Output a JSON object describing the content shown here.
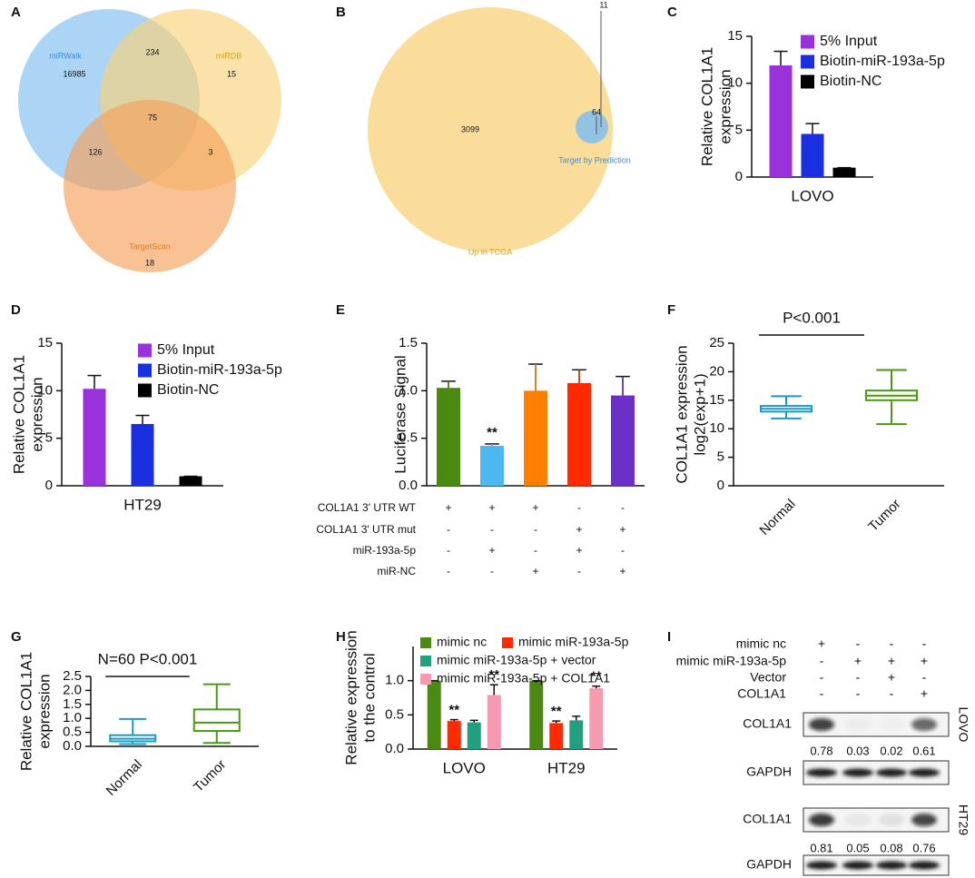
{
  "chart_data": [
    {
      "panel": "A",
      "type": "venn",
      "sets": [
        {
          "name": "miRWalk",
          "color": "#7fbef0"
        },
        {
          "name": "miRDB",
          "color": "#f8d27a"
        },
        {
          "name": "TargetScan",
          "color": "#f5a25a"
        }
      ],
      "values": [
        16985,
        234,
        15,
        75,
        126,
        3,
        18
      ]
    },
    {
      "panel": "B",
      "type": "venn",
      "sets": [
        {
          "name": "Up in TCGA",
          "color": "#f8d27a"
        },
        {
          "name": "Target by Prediction",
          "color": "#7fbef0"
        }
      ],
      "values": [
        3099,
        11,
        64
      ]
    },
    {
      "panel": "C",
      "type": "bar",
      "y_label": [
        "Relative COL1A1",
        "expression"
      ],
      "categories": [
        "LOVO"
      ],
      "series": [
        {
          "name": "5% Input",
          "color": "#9a32dc",
          "values": [
            11.9
          ],
          "errors": [
            1.5
          ]
        },
        {
          "name": "Biotin-miR-193a-5p",
          "color": "#1a2fe0",
          "values": [
            4.6
          ],
          "errors": [
            1.1
          ]
        },
        {
          "name": "Biotin-NC",
          "color": "#000000",
          "values": [
            1.0
          ],
          "errors": [
            0
          ]
        }
      ],
      "ylim": [
        0,
        15
      ],
      "yticks": [
        0,
        5,
        10,
        15
      ]
    },
    {
      "panel": "D",
      "type": "bar",
      "y_label": [
        "Relative COL1A1",
        "expression"
      ],
      "categories": [
        "HT29"
      ],
      "series": [
        {
          "name": "5% Input",
          "color": "#9a32dc",
          "values": [
            10.2
          ],
          "errors": [
            1.4
          ]
        },
        {
          "name": "Biotin-miR-193a-5p",
          "color": "#1a2fe0",
          "values": [
            6.5
          ],
          "errors": [
            0.9
          ]
        },
        {
          "name": "Biotin-NC",
          "color": "#000000",
          "values": [
            1.0
          ],
          "errors": [
            0
          ]
        }
      ],
      "ylim": [
        0,
        15
      ],
      "yticks": [
        0,
        5,
        10,
        15
      ]
    },
    {
      "panel": "E",
      "type": "bar",
      "y_label": [
        "Luciferase Signal"
      ],
      "values": [
        1.03,
        0.42,
        1.0,
        1.08,
        0.95
      ],
      "errors": [
        0.07,
        0.02,
        0.28,
        0.14,
        0.2
      ],
      "colors": [
        "#4a8a10",
        "#4db8f0",
        "#ff8000",
        "#ff2a00",
        "#6a30c8"
      ],
      "value_annotations": [
        null,
        "**",
        null,
        null,
        null
      ],
      "ylim": [
        0,
        1.5
      ],
      "yticks": [
        {
          "value": 0,
          "label": "0.0"
        },
        0.5,
        {
          "value": 1,
          "label": "1.0"
        },
        1.5
      ],
      "conditions": [
        {
          "label": "COL1A1 3' UTR WT",
          "marks": [
            "+",
            "+",
            "+",
            "-",
            "-"
          ]
        },
        {
          "label": "COL1A1 3' UTR mut",
          "marks": [
            "-",
            "-",
            "-",
            "+",
            "+"
          ]
        },
        {
          "label": "miR-193a-5p",
          "marks": [
            "-",
            "+",
            "-",
            "+",
            "-"
          ]
        },
        {
          "label": "miR-NC",
          "marks": [
            "-",
            "-",
            "+",
            "-",
            "+"
          ]
        }
      ]
    },
    {
      "panel": "F",
      "type": "box",
      "y_label": [
        "COL1A1 expression",
        "log2(exp+1)"
      ],
      "annotation": "P<0.001",
      "categories": [
        "Normal",
        "Tumor"
      ],
      "colors": [
        "#1a9ac8",
        "#4a9a10"
      ],
      "boxes": [
        {
          "min": 11.8,
          "q1": 13.0,
          "median": 13.5,
          "q3": 14.0,
          "max": 15.7
        },
        {
          "min": 10.8,
          "q1": 15.0,
          "median": 15.8,
          "q3": 16.7,
          "max": 20.3
        }
      ],
      "ylim": [
        0,
        25
      ],
      "yticks": [
        0,
        5,
        10,
        15,
        20,
        25
      ]
    },
    {
      "panel": "G",
      "type": "box",
      "y_label": [
        "Relative COL1A1",
        "expression"
      ],
      "annotation": "N=60 P<0.001",
      "categories": [
        "Normal",
        "Tumor"
      ],
      "colors": [
        "#1a9ac8",
        "#4a9a10"
      ],
      "boxes": [
        {
          "min": 0.08,
          "q1": 0.18,
          "median": 0.27,
          "q3": 0.4,
          "max": 0.98
        },
        {
          "min": 0.12,
          "q1": 0.55,
          "median": 0.85,
          "q3": 1.32,
          "max": 2.22
        }
      ],
      "ylim": [
        0,
        2.5
      ],
      "yticks": [
        {
          "value": 0,
          "label": "0.0"
        },
        0.5,
        {
          "value": 1,
          "label": "1.0"
        },
        1.5,
        {
          "value": 2,
          "label": "2.0"
        },
        2.5
      ]
    },
    {
      "panel": "H",
      "type": "bar",
      "y_label": [
        "Relative expression",
        "to the control"
      ],
      "categories": [
        "LOVO",
        "HT29"
      ],
      "series": [
        {
          "name": "mimic nc",
          "color": "#4a8a10",
          "values": [
            1.0,
            1.0
          ],
          "errors": [
            0,
            0
          ],
          "annotations": [
            null,
            null
          ]
        },
        {
          "name": "mimic miR-193a-5p",
          "color": "#ff2a00",
          "values": [
            0.41,
            0.38
          ],
          "errors": [
            0.02,
            0.03
          ],
          "annotations": [
            "**",
            "**"
          ]
        },
        {
          "name": "mimic miR-193a-5p + vector",
          "color": "#20a080",
          "values": [
            0.39,
            0.42
          ],
          "errors": [
            0.03,
            0.06
          ],
          "annotations": [
            null,
            null
          ]
        },
        {
          "name": "mimic miR-193a-5p + COL1A1",
          "color": "#f799b0",
          "values": [
            0.79,
            0.89
          ],
          "errors": [
            0.15,
            0.03
          ],
          "annotations": [
            "**",
            "**"
          ]
        }
      ],
      "ylim": [
        0,
        1.5
      ],
      "yticks": [
        {
          "value": 0,
          "label": "0.0"
        },
        0.5,
        {
          "value": 1,
          "label": "1.0"
        }
      ]
    },
    {
      "panel": "I",
      "type": "blot",
      "conditions": [
        {
          "label": "mimic nc",
          "marks": [
            "+",
            "-",
            "-",
            "-"
          ]
        },
        {
          "label": "mimic miR-193a-5p",
          "marks": [
            "-",
            "+",
            "+",
            "+"
          ]
        },
        {
          "label": "Vector",
          "marks": [
            "-",
            "-",
            "+",
            "-"
          ]
        },
        {
          "label": "COL1A1",
          "marks": [
            "-",
            "-",
            "-",
            "+"
          ]
        }
      ],
      "blots": [
        {
          "cell_line": "LOVO",
          "rows": [
            {
              "label": "COL1A1",
              "values": [
                0.78,
                0.03,
                0.02,
                0.61
              ]
            },
            {
              "label": "GAPDH"
            }
          ]
        },
        {
          "cell_line": "HT29",
          "rows": [
            {
              "label": "COL1A1",
              "values": [
                0.81,
                0.05,
                0.08,
                0.76
              ]
            },
            {
              "label": "GAPDH"
            }
          ]
        }
      ]
    }
  ]
}
